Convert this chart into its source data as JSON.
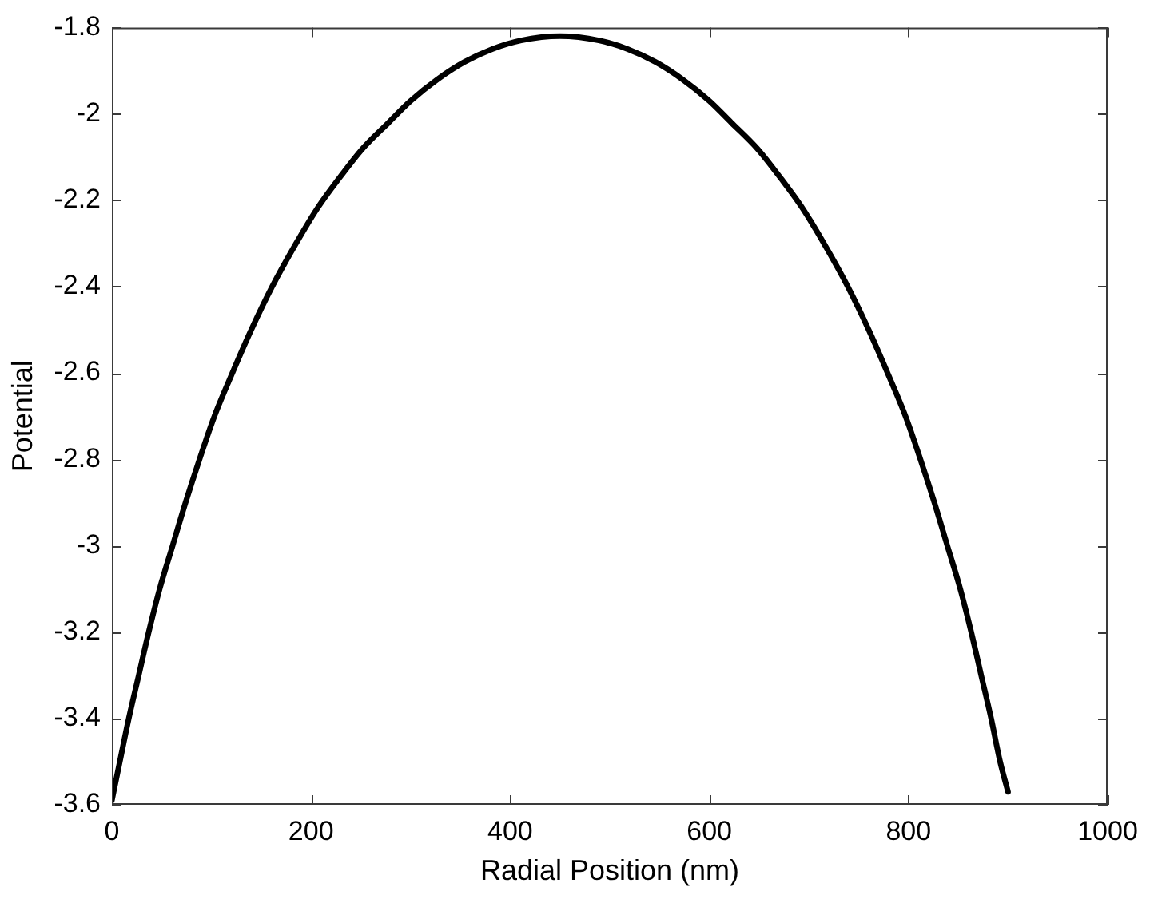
{
  "chart_data": {
    "type": "line",
    "xlabel": "Radial Position (nm)",
    "ylabel": "Potential",
    "x": [
      0,
      8,
      17,
      27,
      37,
      48,
      61,
      74,
      88,
      103,
      121,
      140,
      161,
      185,
      206,
      228,
      252,
      278,
      300,
      327,
      354,
      382,
      411,
      450,
      489,
      518,
      546,
      573,
      600,
      622,
      648,
      672,
      694,
      715,
      739,
      760,
      779,
      797,
      812,
      826,
      839,
      852,
      863,
      873,
      883,
      892,
      900
    ],
    "values": [
      -3.59,
      -3.5,
      -3.4,
      -3.3,
      -3.2,
      -3.1,
      -3,
      -2.9,
      -2.8,
      -2.7,
      -2.6,
      -2.5,
      -2.4,
      -2.3,
      -2.22,
      -2.15,
      -2.08,
      -2.02,
      -1.97,
      -1.92,
      -1.88,
      -1.85,
      -1.83,
      -1.82,
      -1.83,
      -1.85,
      -1.88,
      -1.92,
      -1.97,
      -2.02,
      -2.08,
      -2.15,
      -2.22,
      -2.3,
      -2.4,
      -2.5,
      -2.6,
      -2.7,
      -2.8,
      -2.9,
      -3,
      -3.1,
      -3.2,
      -3.3,
      -3.4,
      -3.5,
      -3.57
    ],
    "color": "#000000",
    "line_style": "solid",
    "marker": "none",
    "xlim": [
      0,
      1000
    ],
    "xticks": [
      0,
      200,
      400,
      600,
      800,
      1000
    ],
    "ylim": [
      -3.6,
      -1.8
    ],
    "yticks": [
      -3.6,
      -3.4,
      -3.2,
      -3,
      -2.8,
      -2.6,
      -2.4,
      -2.2,
      -2,
      -1.8
    ]
  }
}
